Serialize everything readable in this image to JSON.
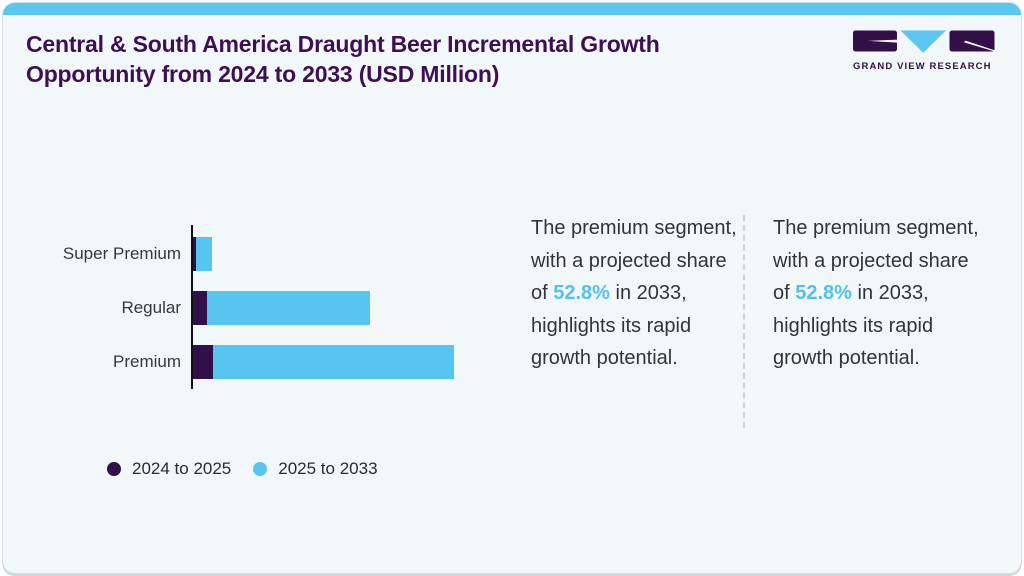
{
  "header": {
    "title": "Central & South America Draught Beer Incremental Growth Opportunity from 2024 to 2033 (USD Million)",
    "logo_text": "GRAND VIEW RESEARCH"
  },
  "chart_data": {
    "type": "bar",
    "orientation": "horizontal",
    "stacked": true,
    "title": "Central & South America Draught Beer Incremental Growth Opportunity from 2024 to 2033 (USD Million)",
    "value_unit": "USD Million",
    "value_axis_visible": false,
    "grid": false,
    "legend_position": "bottom-left",
    "categories": [
      "Super Premium",
      "Regular",
      "Premium"
    ],
    "series": [
      {
        "name": "2024 to 2025",
        "color": "#31104a",
        "values": [
          2.5,
          13.5,
          20
        ]
      },
      {
        "name": "2025 to 2033",
        "color": "#58c5f0",
        "values": [
          16.5,
          163,
          241
        ]
      }
    ],
    "values_note": "relative magnitudes estimated from bar pixel lengths; no numeric axis shown in image"
  },
  "insights": [
    {
      "before": "The premium segment, with a projected share of ",
      "highlight": "52.8%",
      "after": " in 2033, highlights its rapid growth potential."
    },
    {
      "before": "The premium segment, with a projected share of ",
      "highlight": "52.8%",
      "after": " in 2033, highlights its rapid growth potential."
    }
  ],
  "colors": {
    "title_purple": "#3c1053",
    "bar_purple": "#31104a",
    "bar_blue": "#58c5f0",
    "highlight_blue": "#53c1f0",
    "top_strip_blue": "#5bc6f0",
    "card_background": "#f2f7fa",
    "axis_black": "#101014"
  }
}
